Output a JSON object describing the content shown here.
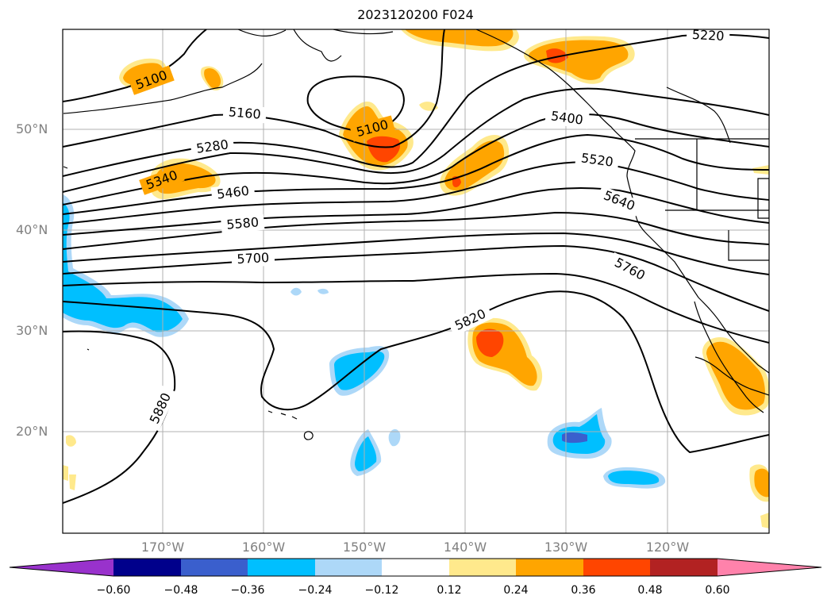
{
  "title": "2023120200 F024",
  "map": {
    "latitude_labels": [
      "50°N",
      "40°N",
      "30°N",
      "20°N"
    ],
    "longitude_labels": [
      "170°W",
      "160°W",
      "150°W",
      "140°W",
      "130°W",
      "120°W"
    ],
    "gridlines": true,
    "contour_labels": [
      "5100",
      "5100",
      "5160",
      "5220",
      "5280",
      "5340",
      "5400",
      "5460",
      "5520",
      "5580",
      "5640",
      "5700",
      "5760",
      "5820",
      "5880"
    ]
  },
  "colorbar": {
    "tick_labels": [
      "−0.60",
      "−0.48",
      "−0.36",
      "−0.24",
      "−0.12",
      "0.12",
      "0.24",
      "0.36",
      "0.48",
      "0.60"
    ],
    "colors": [
      "#9932cc",
      "#00008b",
      "#3a5fcd",
      "#00bfff",
      "#add8f8",
      "#ffffff",
      "#ffe98c",
      "#ffa500",
      "#ff4500",
      "#b22222",
      "#ff82ab"
    ]
  },
  "colors": {
    "orange": "#ffa500",
    "light_yellow": "#ffe98c",
    "red_orange": "#ff4500",
    "sky_blue": "#00bfff",
    "light_blue": "#add8f8",
    "royal_blue": "#3a5fcd",
    "contour": "#000000",
    "grid": "#b0b0b0"
  }
}
